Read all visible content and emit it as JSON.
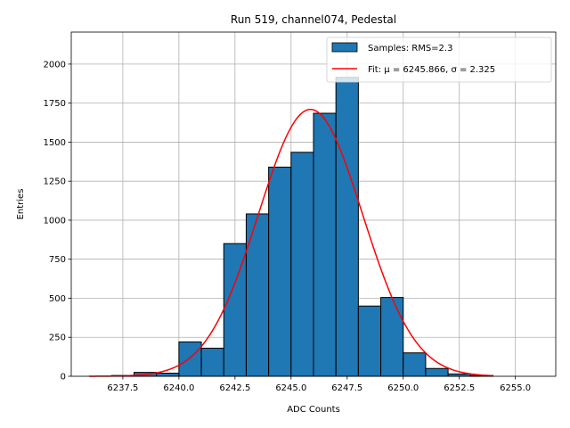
{
  "chart_data": {
    "type": "bar",
    "title": "Run 519, channel074, Pedestal",
    "xlabel": "ADC Counts",
    "ylabel": "Entries",
    "xlim": [
      6235.2,
      6256.8
    ],
    "ylim": [
      0,
      2205
    ],
    "grid": true,
    "legend_position": "top-right",
    "x_ticks": [
      "6237.5",
      "6240.0",
      "6242.5",
      "6245.0",
      "6247.5",
      "6250.0",
      "6252.5",
      "6255.0"
    ],
    "y_ticks": [
      "0",
      "250",
      "500",
      "750",
      "1000",
      "1250",
      "1500",
      "1750",
      "2000"
    ],
    "histogram": {
      "name": "Samples: RMS=2.3",
      "color": "#1f77b4",
      "edge_color": "#000000",
      "bin_edges": [
        6236,
        6237,
        6238,
        6239,
        6240,
        6241,
        6242,
        6243,
        6244,
        6245,
        6246,
        6247,
        6248,
        6249,
        6250,
        6251,
        6252,
        6253,
        6254,
        6255,
        6256
      ],
      "values": [
        0,
        5,
        25,
        20,
        220,
        180,
        850,
        1040,
        1340,
        1435,
        1685,
        1915,
        450,
        505,
        150,
        50,
        15,
        5,
        0,
        0
      ]
    },
    "fit": {
      "name": "Fit: μ = 6245.866, σ = 2.325",
      "color": "#ff0000",
      "mu": 6245.866,
      "sigma": 2.325,
      "amplitude": 1710,
      "x_range": [
        6236,
        6254
      ]
    }
  }
}
